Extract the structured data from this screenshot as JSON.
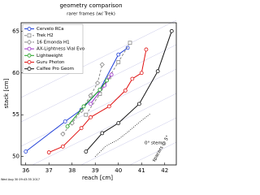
{
  "chart_data": {
    "type": "line",
    "title": "geometry comparison",
    "subtitle": "rarer frames (w/ Trek)",
    "x_label": "reach [cm]",
    "y_label": "stack [cm]",
    "annotations": [
      "0° stem",
      "spacers @ 5°"
    ],
    "footer": "Wed Aug 30 09:43:35 2017",
    "xlim": [
      35.8,
      42.5
    ],
    "xticks": [
      36,
      37,
      38,
      39,
      40,
      41,
      42
    ],
    "ylim": [
      49,
      66
    ],
    "yticks": [
      50,
      55,
      60,
      65
    ],
    "legend": "upper left",
    "series": [
      {
        "name": "Cervelo RCa",
        "color": "#1f3fd8",
        "marker": "circle",
        "dash": "solid",
        "x": [
          36.0,
          37.7,
          38.4,
          39.2,
          40.0,
          40.4
        ],
        "values": [
          50.6,
          54.2,
          55.6,
          58.0,
          62.2,
          63.0
        ]
      },
      {
        "name": "Trek H2",
        "color": "#888888",
        "marker": "square",
        "dash": "dashed",
        "x": [
          38.6,
          39.2,
          39.6,
          40.0,
          40.5
        ],
        "values": [
          55.0,
          57.5,
          59.5,
          61.3,
          63.6
        ]
      },
      {
        "name": "16 Emonda H1",
        "color": "#888888",
        "marker": "diamond",
        "dash": "dashed",
        "x": [
          37.6,
          38.0,
          38.4,
          38.8,
          39.1,
          39.3
        ],
        "values": [
          52.7,
          54.0,
          55.5,
          57.3,
          58.8,
          61.0
        ]
      },
      {
        "name": "AX-Lightness Vial Evo",
        "color": "#9b30c8",
        "marker": "circle",
        "dash": "solid",
        "x": [
          38.8,
          39.4,
          39.7
        ],
        "values": [
          56.3,
          58.5,
          59.8
        ]
      },
      {
        "name": "Lightweight",
        "color": "#20a020",
        "marker": "circle",
        "dash": "solid",
        "x": [
          37.8,
          38.5,
          39.2,
          39.5
        ],
        "values": [
          53.6,
          56.0,
          58.0,
          59.1
        ]
      },
      {
        "name": "Guru Photon",
        "color": "#e01010",
        "marker": "circle",
        "dash": "solid",
        "x": [
          37.0,
          37.6,
          38.4,
          38.8,
          39.6,
          40.3,
          40.6,
          41.0,
          41.2
        ],
        "values": [
          50.5,
          51.2,
          53.4,
          54.7,
          56.0,
          57.9,
          59.3,
          60.0,
          62.8
        ]
      },
      {
        "name": "Calfee Pro Geom",
        "color": "#111111",
        "marker": "circle",
        "dash": "solid",
        "x": [
          38.6,
          39.3,
          40.0,
          40.9,
          41.7,
          42.3
        ],
        "values": [
          50.6,
          52.8,
          54.0,
          56.3,
          60.2,
          65.0
        ]
      }
    ]
  }
}
